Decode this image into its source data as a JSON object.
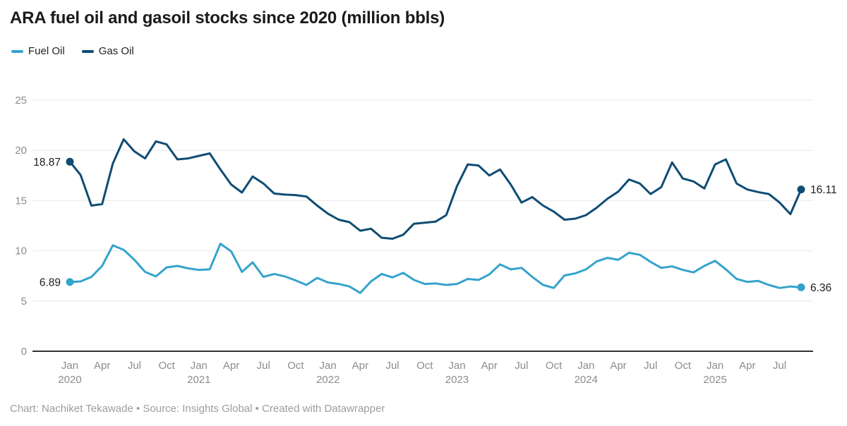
{
  "header": {
    "title": "ARA fuel oil and gasoil stocks since 2020 (million bbls)"
  },
  "legend": [
    {
      "label": "Fuel Oil",
      "color": "#35a3cd"
    },
    {
      "label": "Gas Oil",
      "color": "#0f4c74"
    }
  ],
  "chart_data": {
    "type": "line",
    "title": "ARA fuel oil and gasoil stocks since 2020 (million bbls)",
    "x_unit": "month",
    "months": [
      "2020-01",
      "2020-02",
      "2020-03",
      "2020-04",
      "2020-05",
      "2020-06",
      "2020-07",
      "2020-08",
      "2020-09",
      "2020-10",
      "2020-11",
      "2020-12",
      "2021-01",
      "2021-02",
      "2021-03",
      "2021-04",
      "2021-05",
      "2021-06",
      "2021-07",
      "2021-08",
      "2021-09",
      "2021-10",
      "2021-11",
      "2021-12",
      "2022-01",
      "2022-02",
      "2022-03",
      "2022-04",
      "2022-05",
      "2022-06",
      "2022-07",
      "2022-08",
      "2022-09",
      "2022-10",
      "2022-11",
      "2022-12",
      "2023-01",
      "2023-02",
      "2023-03",
      "2023-04",
      "2023-05",
      "2023-06",
      "2023-07",
      "2023-08",
      "2023-09",
      "2023-10",
      "2023-11",
      "2023-12",
      "2024-01",
      "2024-02",
      "2024-03",
      "2024-04",
      "2024-05",
      "2024-06",
      "2024-07",
      "2024-08",
      "2024-09",
      "2024-10",
      "2024-11",
      "2024-12",
      "2025-01",
      "2025-02",
      "2025-03",
      "2025-04",
      "2025-05",
      "2025-06",
      "2025-07",
      "2025-08",
      "2025-09"
    ],
    "series": [
      {
        "name": "Fuel Oil",
        "color": "#35a3cd",
        "values": [
          6.89,
          6.95,
          7.4,
          8.5,
          10.55,
          10.1,
          9.1,
          7.9,
          7.45,
          8.35,
          8.5,
          8.25,
          8.1,
          8.15,
          10.7,
          9.95,
          7.9,
          8.85,
          7.4,
          7.7,
          7.45,
          7.05,
          6.6,
          7.3,
          6.85,
          6.7,
          6.45,
          5.8,
          6.95,
          7.7,
          7.35,
          7.8,
          7.1,
          6.7,
          6.75,
          6.6,
          6.7,
          7.2,
          7.1,
          7.65,
          8.65,
          8.15,
          8.3,
          7.4,
          6.6,
          6.3,
          7.55,
          7.75,
          8.15,
          8.95,
          9.3,
          9.1,
          9.8,
          9.6,
          8.9,
          8.3,
          8.45,
          8.1,
          7.85,
          8.5,
          9.0,
          8.15,
          7.2,
          6.9,
          7.0,
          6.6,
          6.3,
          6.45,
          6.36
        ]
      },
      {
        "name": "Gas Oil",
        "color": "#0f4c74",
        "values": [
          18.87,
          17.55,
          14.5,
          14.65,
          18.7,
          21.1,
          19.9,
          19.2,
          20.9,
          20.6,
          19.1,
          19.2,
          19.45,
          19.7,
          18.1,
          16.6,
          15.8,
          17.4,
          16.7,
          15.7,
          15.6,
          15.55,
          15.4,
          14.5,
          13.7,
          13.1,
          12.85,
          12.0,
          12.2,
          11.3,
          11.2,
          11.6,
          12.7,
          12.8,
          12.9,
          13.55,
          16.45,
          18.6,
          18.5,
          17.5,
          18.1,
          16.6,
          14.8,
          15.35,
          14.5,
          13.9,
          13.1,
          13.2,
          13.55,
          14.3,
          15.2,
          15.9,
          17.1,
          16.7,
          15.65,
          16.35,
          18.8,
          17.2,
          16.9,
          16.2,
          18.6,
          19.1,
          16.7,
          16.1,
          15.85,
          15.65,
          14.8,
          13.65,
          16.11
        ]
      }
    ],
    "y_ticks": [
      0,
      5,
      10,
      15,
      20,
      25
    ],
    "ylim": [
      0,
      26
    ],
    "grid": "horizontal",
    "legend_position": "top-left",
    "x_ticks": [
      {
        "index": 0,
        "label": "Jan",
        "year": "2020"
      },
      {
        "index": 3,
        "label": "Apr"
      },
      {
        "index": 6,
        "label": "Jul"
      },
      {
        "index": 9,
        "label": "Oct"
      },
      {
        "index": 12,
        "label": "Jan",
        "year": "2021"
      },
      {
        "index": 15,
        "label": "Apr"
      },
      {
        "index": 18,
        "label": "Jul"
      },
      {
        "index": 21,
        "label": "Oct"
      },
      {
        "index": 24,
        "label": "Jan",
        "year": "2022"
      },
      {
        "index": 27,
        "label": "Apr"
      },
      {
        "index": 30,
        "label": "Jul"
      },
      {
        "index": 33,
        "label": "Oct"
      },
      {
        "index": 36,
        "label": "Jan",
        "year": "2023"
      },
      {
        "index": 39,
        "label": "Apr"
      },
      {
        "index": 42,
        "label": "Jul"
      },
      {
        "index": 45,
        "label": "Oct"
      },
      {
        "index": 48,
        "label": "Jan",
        "year": "2024"
      },
      {
        "index": 51,
        "label": "Apr"
      },
      {
        "index": 54,
        "label": "Jul"
      },
      {
        "index": 57,
        "label": "Oct"
      },
      {
        "index": 60,
        "label": "Jan",
        "year": "2025"
      },
      {
        "index": 63,
        "label": "Apr"
      },
      {
        "index": 66,
        "label": "Jul"
      }
    ],
    "point_labels": [
      {
        "series": "Gas Oil",
        "position": "start",
        "text": "18.87"
      },
      {
        "series": "Fuel Oil",
        "position": "start",
        "text": "6.89"
      },
      {
        "series": "Gas Oil",
        "position": "end",
        "text": "16.11"
      },
      {
        "series": "Fuel Oil",
        "position": "end",
        "text": "6.36"
      }
    ]
  },
  "footer": {
    "credit": "Chart: Nachiket Tekawade • Source: Insights Global • Created with Datawrapper"
  },
  "colors": {
    "title": "#1a1a1a",
    "axis_text": "#8c8c8c",
    "grid": "#e9e9e9",
    "baseline": "#333333",
    "label_text": "#1d1d1d",
    "footer_text": "#9d9d9d",
    "background": "#ffffff"
  }
}
